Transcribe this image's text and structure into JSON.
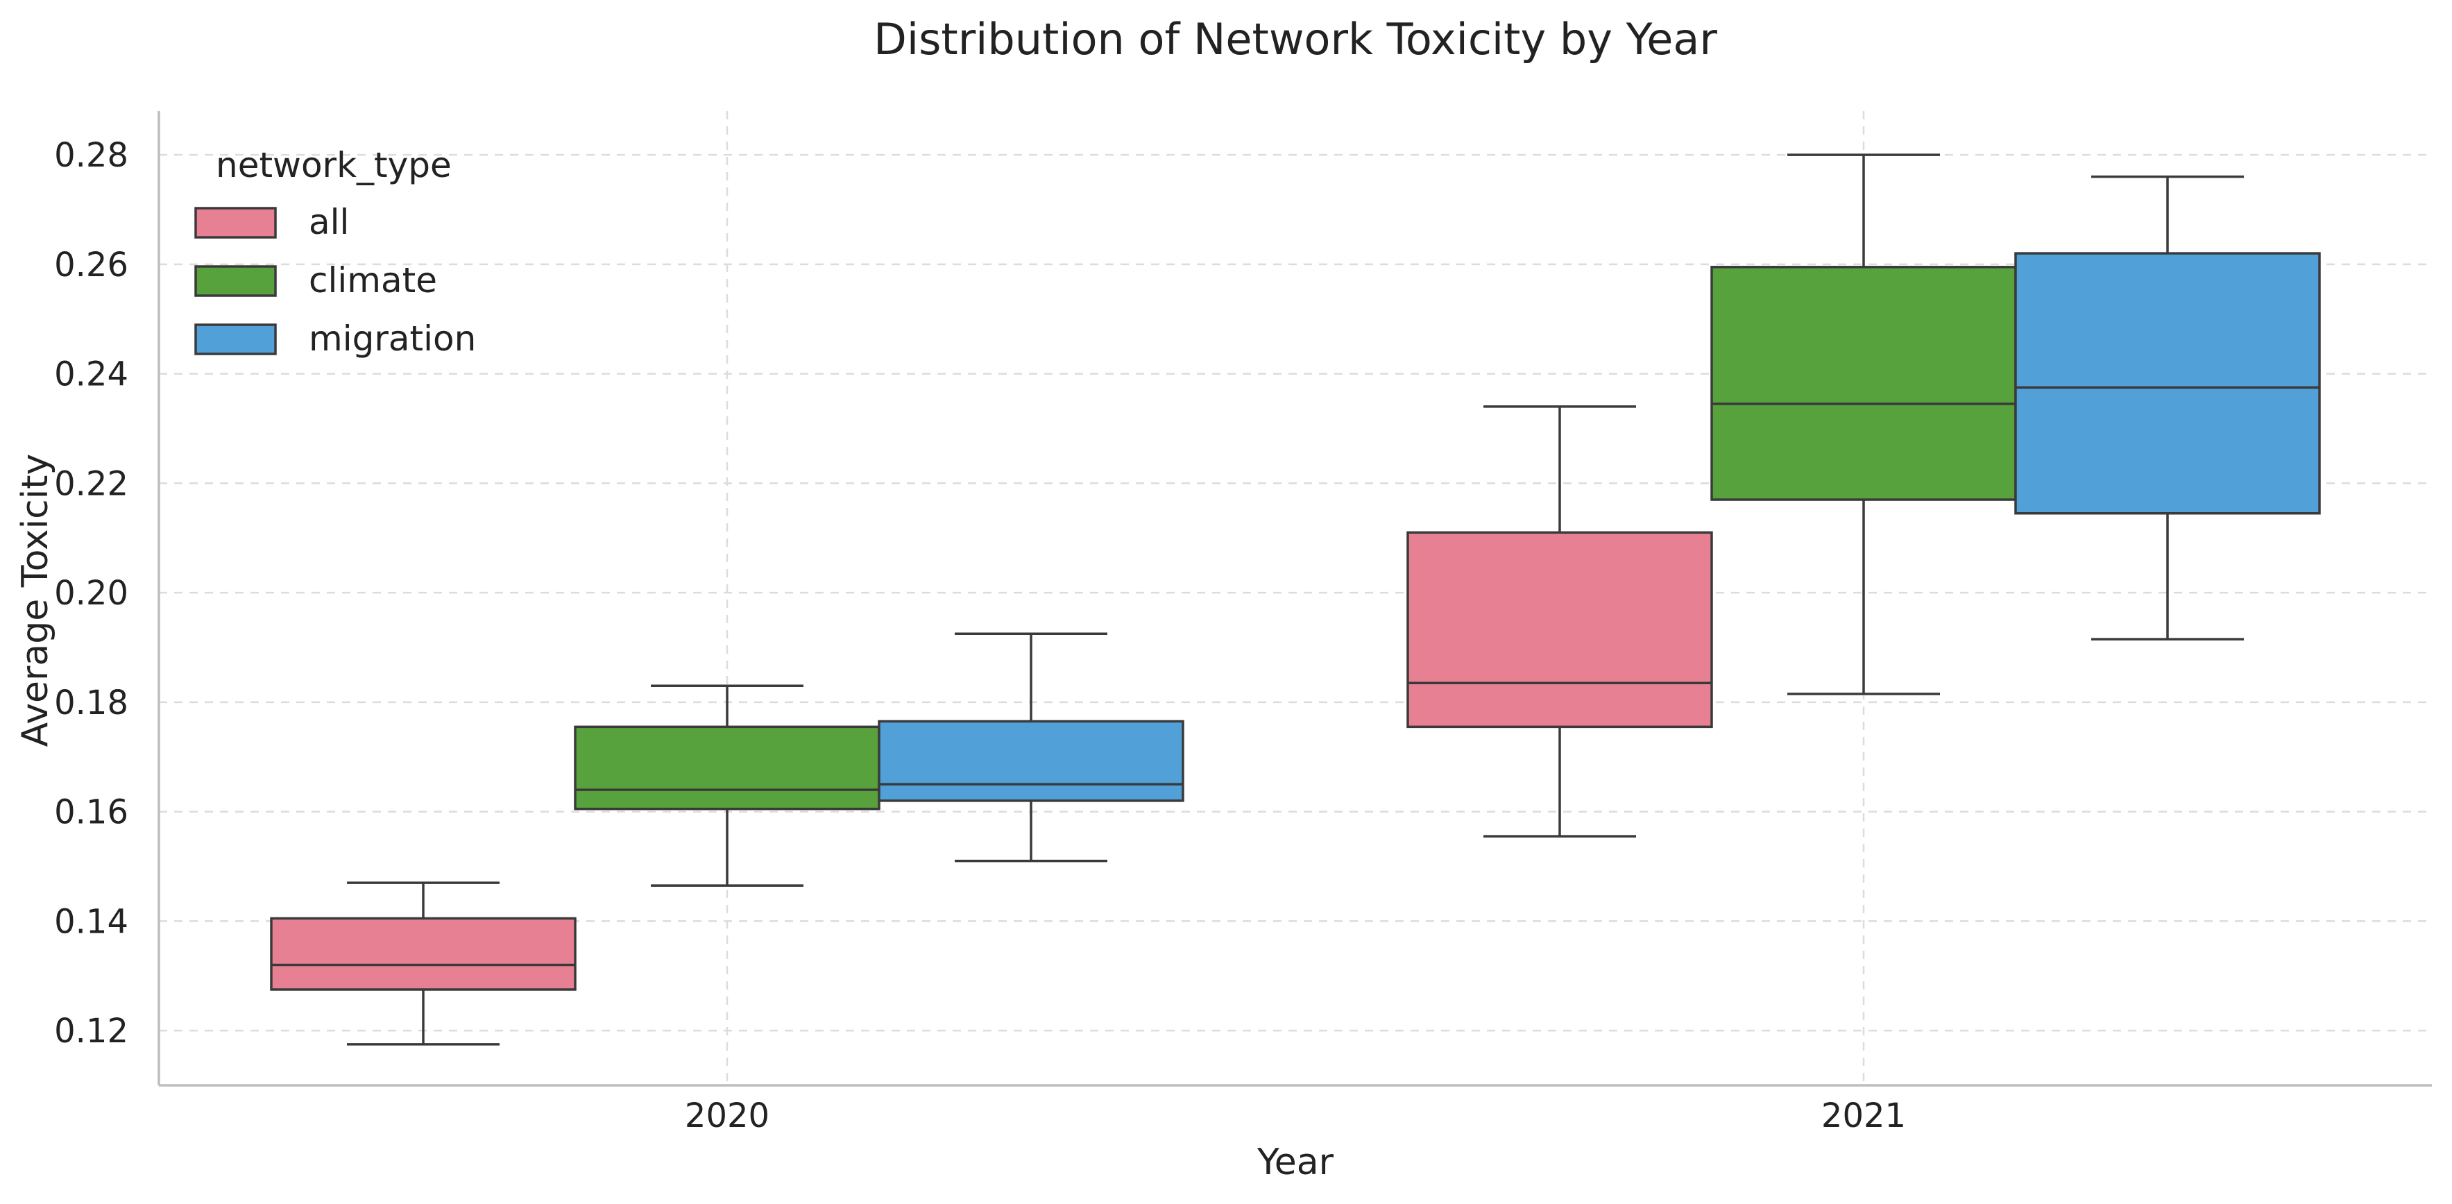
{
  "chart_data": {
    "type": "box",
    "title": "Distribution of Network Toxicity by Year",
    "xlabel": "Year",
    "ylabel": "Average Toxicity",
    "categories": [
      "2020",
      "2021"
    ],
    "ylim": [
      0.11,
      0.288
    ],
    "yticks": [
      "0.12",
      "0.14",
      "0.16",
      "0.18",
      "0.20",
      "0.22",
      "0.24",
      "0.26",
      "0.28"
    ],
    "grid": true,
    "legend": {
      "title": "network_type",
      "position": "top-left"
    },
    "series": [
      {
        "name": "all",
        "color": "#e88093",
        "boxes": [
          {
            "whisker_low": 0.1175,
            "q1": 0.1275,
            "median": 0.132,
            "q3": 0.1405,
            "whisker_high": 0.147
          },
          {
            "whisker_low": 0.1555,
            "q1": 0.1755,
            "median": 0.1835,
            "q3": 0.211,
            "whisker_high": 0.234
          }
        ]
      },
      {
        "name": "climate",
        "color": "#58a23e",
        "boxes": [
          {
            "whisker_low": 0.1465,
            "q1": 0.1605,
            "median": 0.164,
            "q3": 0.1755,
            "whisker_high": 0.183
          },
          {
            "whisker_low": 0.1815,
            "q1": 0.217,
            "median": 0.2345,
            "q3": 0.2595,
            "whisker_high": 0.28
          }
        ]
      },
      {
        "name": "migration",
        "color": "#52a0d8",
        "boxes": [
          {
            "whisker_low": 0.151,
            "q1": 0.162,
            "median": 0.165,
            "q3": 0.1765,
            "whisker_high": 0.1925
          },
          {
            "whisker_low": 0.1915,
            "q1": 0.2145,
            "median": 0.2375,
            "q3": 0.262,
            "whisker_high": 0.276
          }
        ]
      }
    ]
  }
}
